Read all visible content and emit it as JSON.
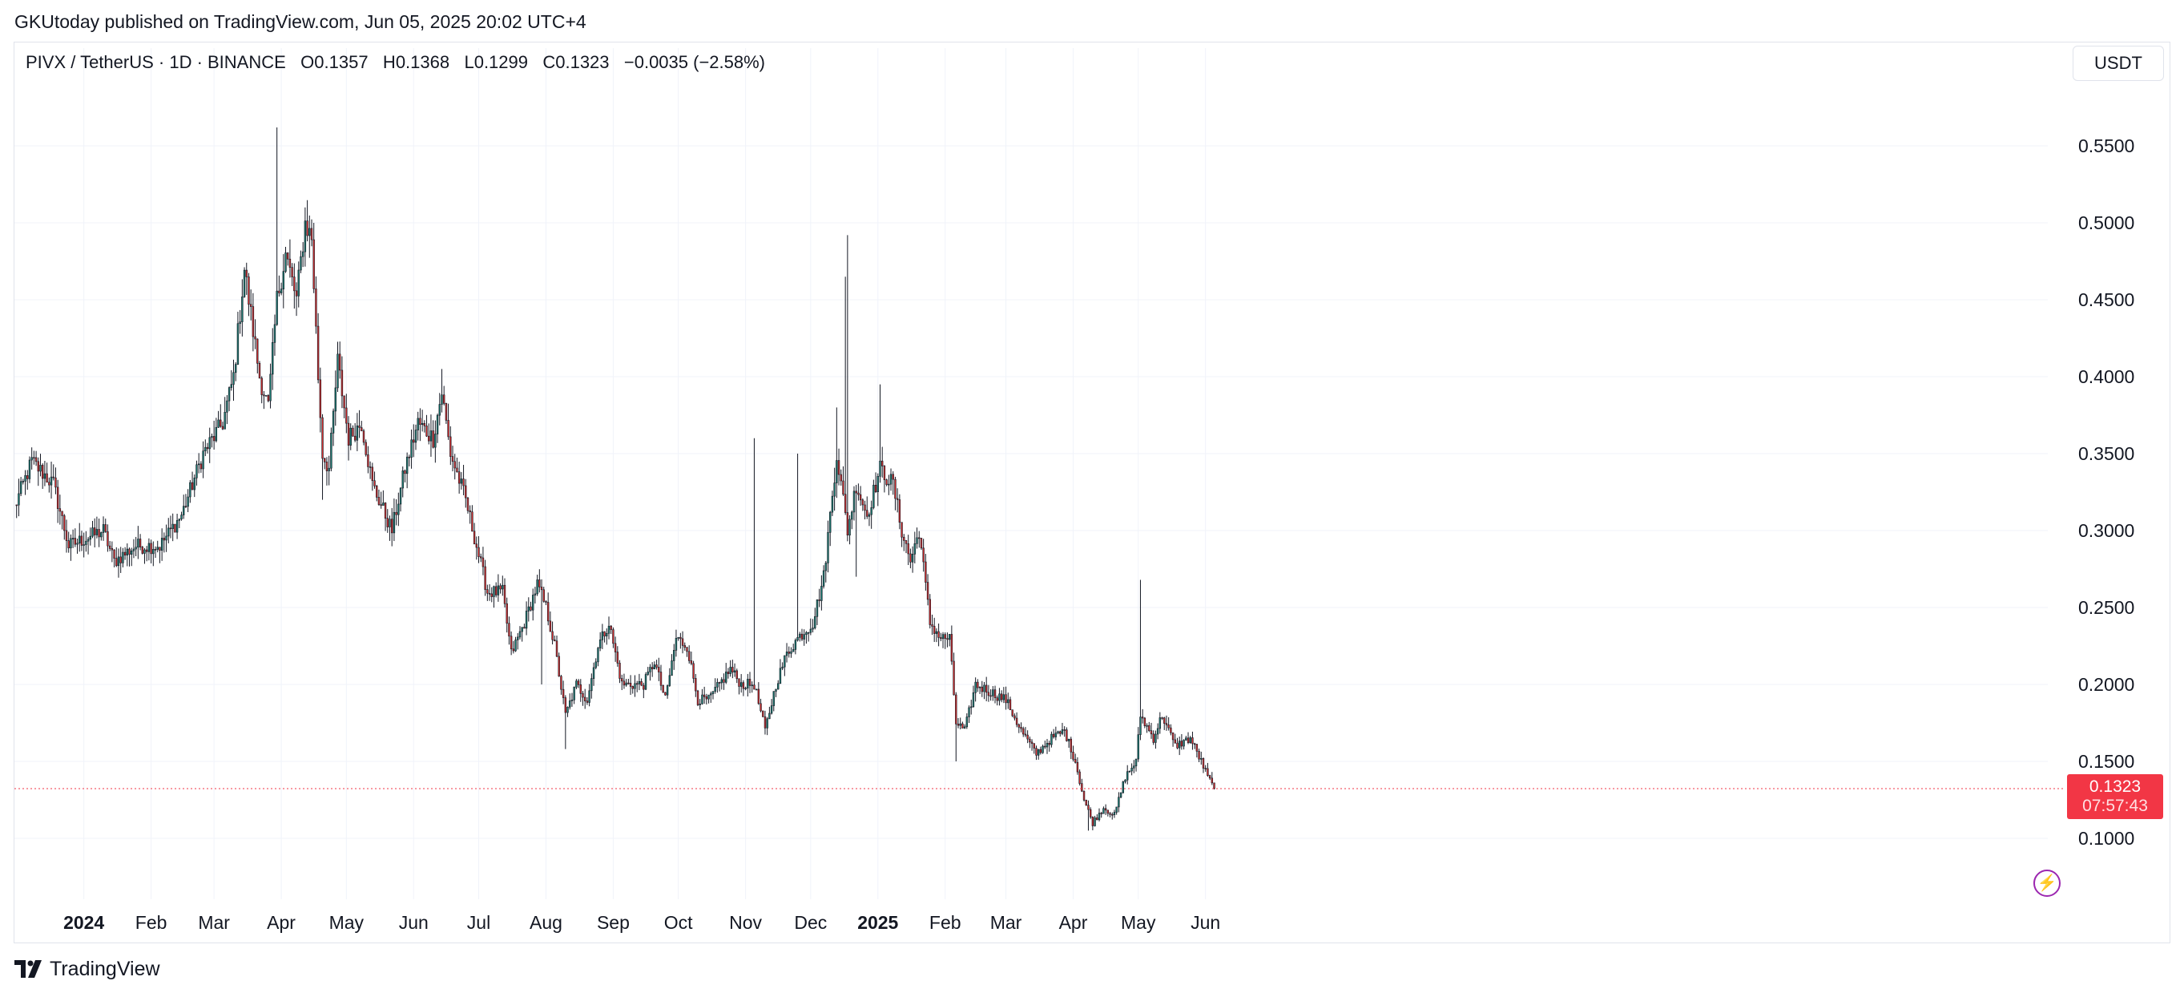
{
  "header": {
    "published": "GKUtoday published on TradingView.com, Jun 05, 2025 20:02 UTC+4"
  },
  "legend": {
    "symbol": "PIVX / TetherUS · 1D · BINANCE",
    "open_label": "O",
    "open": "0.1357",
    "high_label": "H",
    "high": "0.1368",
    "low_label": "L",
    "low": "0.1299",
    "close_label": "C",
    "close": "0.1323",
    "change": "−0.0035 (−2.58%)"
  },
  "currency": "USDT",
  "price_tag": {
    "price": "0.1323",
    "countdown": "07:57:43"
  },
  "footer": {
    "brand": "TradingView"
  },
  "icons": {
    "logo": "tradingview-logo-icon",
    "flash": "lightning-icon"
  },
  "colors": {
    "up": "#26a69a",
    "up_body": "#1e7d73",
    "down": "#ef5350",
    "down_body": "#d32f2f",
    "wick": "#131722",
    "grid": "#f0f3fa",
    "price_line": "#f23645"
  },
  "chart_data": {
    "type": "candlestick",
    "interval": "1D",
    "ylim": [
      0.06,
      0.6
    ],
    "y_ticks": [
      "0.1000",
      "0.1500",
      "0.2000",
      "0.2500",
      "0.3000",
      "0.3500",
      "0.4000",
      "0.4500",
      "0.5000",
      "0.5500"
    ],
    "x_ticks": [
      {
        "label": "2024",
        "bold": true
      },
      {
        "label": "Feb",
        "bold": false
      },
      {
        "label": "Mar",
        "bold": false
      },
      {
        "label": "Apr",
        "bold": false
      },
      {
        "label": "May",
        "bold": false
      },
      {
        "label": "Jun",
        "bold": false
      },
      {
        "label": "Jul",
        "bold": false
      },
      {
        "label": "Aug",
        "bold": false
      },
      {
        "label": "Sep",
        "bold": false
      },
      {
        "label": "Oct",
        "bold": false
      },
      {
        "label": "Nov",
        "bold": false
      },
      {
        "label": "Dec",
        "bold": false
      },
      {
        "label": "2025",
        "bold": true
      },
      {
        "label": "Feb",
        "bold": false
      },
      {
        "label": "Mar",
        "bold": false
      },
      {
        "label": "Apr",
        "bold": false
      },
      {
        "label": "May",
        "bold": false
      },
      {
        "label": "Jun",
        "bold": false
      }
    ],
    "last_price": 0.1323,
    "anchors": [
      [
        "2023-11-30",
        0.315
      ],
      [
        "2023-12-08",
        0.345
      ],
      [
        "2023-12-18",
        0.33
      ],
      [
        "2023-12-25",
        0.29
      ],
      [
        "2024-01-02",
        0.295
      ],
      [
        "2024-01-10",
        0.3
      ],
      [
        "2024-01-15",
        0.28
      ],
      [
        "2024-01-25",
        0.29
      ],
      [
        "2024-02-05",
        0.29
      ],
      [
        "2024-02-15",
        0.31
      ],
      [
        "2024-02-25",
        0.35
      ],
      [
        "2024-03-05",
        0.37
      ],
      [
        "2024-03-10",
        0.4
      ],
      [
        "2024-03-15",
        0.47
      ],
      [
        "2024-03-22",
        0.4
      ],
      [
        "2024-03-26",
        0.38
      ],
      [
        "2024-03-30",
        0.45
      ],
      [
        "2024-04-03",
        0.48
      ],
      [
        "2024-04-08",
        0.45
      ],
      [
        "2024-04-12",
        0.5
      ],
      [
        "2024-04-15",
        0.49
      ],
      [
        "2024-04-18",
        0.4
      ],
      [
        "2024-04-20",
        0.35
      ],
      [
        "2024-04-23",
        0.34
      ],
      [
        "2024-04-27",
        0.41
      ],
      [
        "2024-05-02",
        0.36
      ],
      [
        "2024-05-08",
        0.37
      ],
      [
        "2024-05-13",
        0.33
      ],
      [
        "2024-05-22",
        0.3
      ],
      [
        "2024-05-28",
        0.34
      ],
      [
        "2024-06-03",
        0.37
      ],
      [
        "2024-06-10",
        0.36
      ],
      [
        "2024-06-14",
        0.39
      ],
      [
        "2024-06-18",
        0.35
      ],
      [
        "2024-06-25",
        0.32
      ],
      [
        "2024-06-30",
        0.29
      ],
      [
        "2024-07-05",
        0.26
      ],
      [
        "2024-07-12",
        0.26
      ],
      [
        "2024-07-16",
        0.22
      ],
      [
        "2024-07-22",
        0.24
      ],
      [
        "2024-07-28",
        0.265
      ],
      [
        "2024-08-01",
        0.25
      ],
      [
        "2024-08-05",
        0.225
      ],
      [
        "2024-08-10",
        0.18
      ],
      [
        "2024-08-15",
        0.2
      ],
      [
        "2024-08-20",
        0.19
      ],
      [
        "2024-08-25",
        0.225
      ],
      [
        "2024-08-30",
        0.24
      ],
      [
        "2024-09-05",
        0.2
      ],
      [
        "2024-09-10",
        0.2
      ],
      [
        "2024-09-15",
        0.2
      ],
      [
        "2024-09-20",
        0.215
      ],
      [
        "2024-09-25",
        0.19
      ],
      [
        "2024-09-30",
        0.23
      ],
      [
        "2024-10-05",
        0.225
      ],
      [
        "2024-10-10",
        0.19
      ],
      [
        "2024-10-15",
        0.19
      ],
      [
        "2024-10-20",
        0.2
      ],
      [
        "2024-10-25",
        0.21
      ],
      [
        "2024-10-30",
        0.2
      ],
      [
        "2024-11-05",
        0.2
      ],
      [
        "2024-11-10",
        0.17
      ],
      [
        "2024-11-15",
        0.2
      ],
      [
        "2024-11-20",
        0.22
      ],
      [
        "2024-11-25",
        0.23
      ],
      [
        "2024-12-02",
        0.24
      ],
      [
        "2024-12-07",
        0.27
      ],
      [
        "2024-12-13",
        0.35
      ],
      [
        "2024-12-18",
        0.3
      ],
      [
        "2024-12-22",
        0.33
      ],
      [
        "2024-12-27",
        0.31
      ],
      [
        "2025-01-02",
        0.34
      ],
      [
        "2025-01-08",
        0.33
      ],
      [
        "2025-01-12",
        0.3
      ],
      [
        "2025-01-16",
        0.28
      ],
      [
        "2025-01-20",
        0.3
      ],
      [
        "2025-01-25",
        0.24
      ],
      [
        "2025-01-30",
        0.23
      ],
      [
        "2025-02-03",
        0.23
      ],
      [
        "2025-02-06",
        0.175
      ],
      [
        "2025-02-10",
        0.17
      ],
      [
        "2025-02-15",
        0.2
      ],
      [
        "2025-02-22",
        0.195
      ],
      [
        "2025-03-01",
        0.19
      ],
      [
        "2025-03-08",
        0.17
      ],
      [
        "2025-03-15",
        0.155
      ],
      [
        "2025-03-22",
        0.165
      ],
      [
        "2025-03-28",
        0.17
      ],
      [
        "2025-04-02",
        0.15
      ],
      [
        "2025-04-06",
        0.125
      ],
      [
        "2025-04-10",
        0.11
      ],
      [
        "2025-04-15",
        0.12
      ],
      [
        "2025-04-20",
        0.115
      ],
      [
        "2025-04-25",
        0.14
      ],
      [
        "2025-04-30",
        0.15
      ],
      [
        "2025-05-02",
        0.18
      ],
      [
        "2025-05-08",
        0.165
      ],
      [
        "2025-05-12",
        0.18
      ],
      [
        "2025-05-18",
        0.16
      ],
      [
        "2025-05-25",
        0.165
      ],
      [
        "2025-05-30",
        0.15
      ],
      [
        "2025-06-02",
        0.14
      ],
      [
        "2025-06-05",
        0.1323
      ]
    ]
  }
}
